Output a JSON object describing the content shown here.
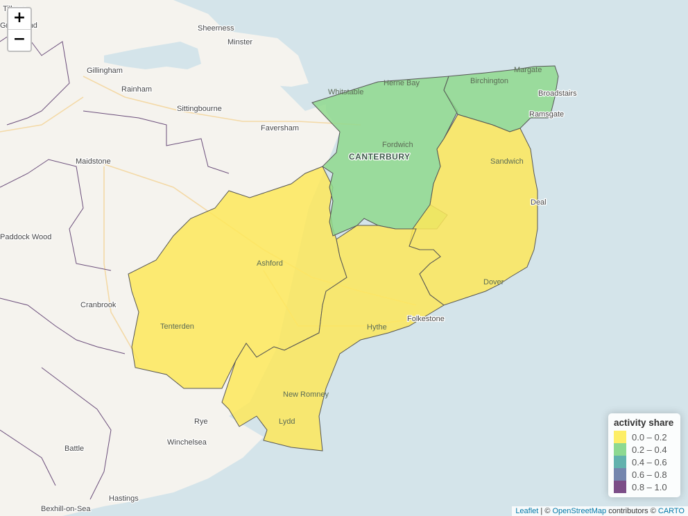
{
  "map": {
    "places": [
      {
        "name": "Tilbury"
      },
      {
        "name": "Gravesend"
      },
      {
        "name": "Sheerness"
      },
      {
        "name": "Minster"
      },
      {
        "name": "Gillingham"
      },
      {
        "name": "Rainham"
      },
      {
        "name": "Sittingbourne"
      },
      {
        "name": "Faversham"
      },
      {
        "name": "Whitstable"
      },
      {
        "name": "Herne Bay"
      },
      {
        "name": "Margate"
      },
      {
        "name": "Birchington"
      },
      {
        "name": "Broadstairs"
      },
      {
        "name": "Ramsgate"
      },
      {
        "name": "Fordwich"
      },
      {
        "name": "CANTERBURY"
      },
      {
        "name": "Sandwich"
      },
      {
        "name": "Deal"
      },
      {
        "name": "Maidstone"
      },
      {
        "name": "Paddock Wood"
      },
      {
        "name": "Ashford"
      },
      {
        "name": "Dover"
      },
      {
        "name": "Cranbrook"
      },
      {
        "name": "Tenterden"
      },
      {
        "name": "Hythe"
      },
      {
        "name": "Folkestone"
      },
      {
        "name": "New Romney"
      },
      {
        "name": "Lydd"
      },
      {
        "name": "Rye"
      },
      {
        "name": "Winchelsea"
      },
      {
        "name": "Battle"
      },
      {
        "name": "Hastings"
      },
      {
        "name": "Bexhill-on-Sea"
      }
    ],
    "regions": [
      {
        "id": "canterbury",
        "value_class": "0.2 – 0.4",
        "color": "#8fd98e"
      },
      {
        "id": "thanet",
        "value_class": "0.2 – 0.4",
        "color": "#8fd98e"
      },
      {
        "id": "ashford",
        "value_class": "0.0 – 0.2",
        "color": "#fde85a"
      },
      {
        "id": "folkestone-hythe",
        "value_class": "0.0 – 0.2",
        "color": "#fde85a"
      },
      {
        "id": "dover",
        "value_class": "0.0 – 0.2",
        "color": "#fde85a"
      }
    ]
  },
  "zoom": {
    "in_label": "+",
    "out_label": "−"
  },
  "legend": {
    "title": "activity share",
    "items": [
      {
        "label": "0.0 – 0.2",
        "color": "#fde725"
      },
      {
        "label": "0.2 – 0.4",
        "color": "#5ec962"
      },
      {
        "label": "0.4 – 0.6",
        "color": "#21918c"
      },
      {
        "label": "0.6 – 0.8",
        "color": "#3b528b"
      },
      {
        "label": "0.8 – 1.0",
        "color": "#440154"
      }
    ]
  },
  "attribution": {
    "leaflet": "Leaflet",
    "sep": " | © ",
    "osm": "OpenStreetMap",
    "mid": " contributors © ",
    "carto": "CARTO"
  }
}
